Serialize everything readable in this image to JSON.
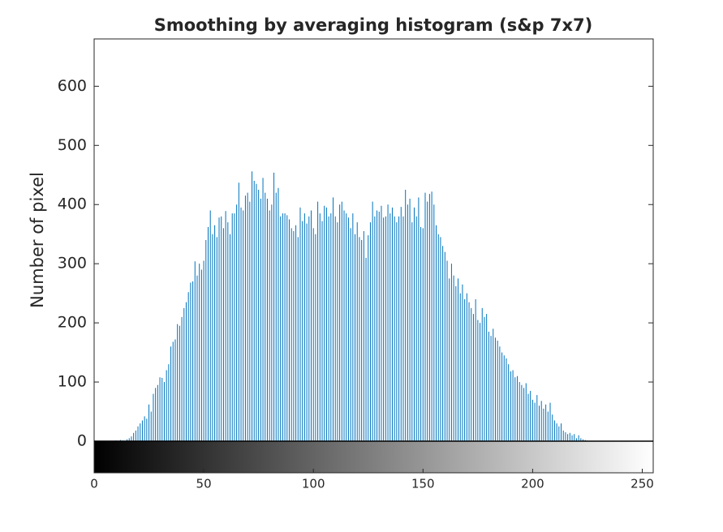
{
  "chart_data": {
    "type": "histogram",
    "title": "Smoothing by averaging histogram (s&p 7x7)",
    "ylabel": "Number of pixel",
    "color": "#0072bd",
    "xlim": [
      0,
      255
    ],
    "ylim": [
      0,
      680
    ],
    "xticks": [
      0,
      50,
      100,
      150,
      200,
      250
    ],
    "yticks": [
      0,
      100,
      200,
      300,
      400,
      500,
      600
    ],
    "x": [
      0,
      1,
      2,
      3,
      4,
      5,
      6,
      7,
      8,
      9,
      10,
      11,
      12,
      13,
      14,
      15,
      16,
      17,
      18,
      19,
      20,
      21,
      22,
      23,
      24,
      25,
      26,
      27,
      28,
      29,
      30,
      31,
      32,
      33,
      34,
      35,
      36,
      37,
      38,
      39,
      40,
      41,
      42,
      43,
      44,
      45,
      46,
      47,
      48,
      49,
      50,
      51,
      52,
      53,
      54,
      55,
      56,
      57,
      58,
      59,
      60,
      61,
      62,
      63,
      64,
      65,
      66,
      67,
      68,
      69,
      70,
      71,
      72,
      73,
      74,
      75,
      76,
      77,
      78,
      79,
      80,
      81,
      82,
      83,
      84,
      85,
      86,
      87,
      88,
      89,
      90,
      91,
      92,
      93,
      94,
      95,
      96,
      97,
      98,
      99,
      100,
      101,
      102,
      103,
      104,
      105,
      106,
      107,
      108,
      109,
      110,
      111,
      112,
      113,
      114,
      115,
      116,
      117,
      118,
      119,
      120,
      121,
      122,
      123,
      124,
      125,
      126,
      127,
      128,
      129,
      130,
      131,
      132,
      133,
      134,
      135,
      136,
      137,
      138,
      139,
      140,
      141,
      142,
      143,
      144,
      145,
      146,
      147,
      148,
      149,
      150,
      151,
      152,
      153,
      154,
      155,
      156,
      157,
      158,
      159,
      160,
      161,
      162,
      163,
      164,
      165,
      166,
      167,
      168,
      169,
      170,
      171,
      172,
      173,
      174,
      175,
      176,
      177,
      178,
      179,
      180,
      181,
      182,
      183,
      184,
      185,
      186,
      187,
      188,
      189,
      190,
      191,
      192,
      193,
      194,
      195,
      196,
      197,
      198,
      199,
      200,
      201,
      202,
      203,
      204,
      205,
      206,
      207,
      208,
      209,
      210,
      211,
      212,
      213,
      214,
      215,
      216,
      217,
      218,
      219,
      220,
      221,
      222,
      223,
      224,
      225,
      226,
      227,
      228,
      229,
      230,
      231,
      232,
      233,
      234,
      235,
      236,
      237,
      238,
      239,
      240,
      241,
      242,
      243,
      244,
      245,
      246,
      247,
      248,
      249,
      250,
      251,
      252,
      253,
      254,
      255
    ],
    "values": [
      0,
      0,
      0,
      0,
      0,
      0,
      0,
      0,
      0,
      0,
      1,
      0,
      2,
      1,
      0,
      3,
      5,
      8,
      14,
      18,
      25,
      30,
      35,
      42,
      38,
      62,
      50,
      80,
      90,
      95,
      108,
      107,
      100,
      120,
      130,
      160,
      168,
      172,
      198,
      195,
      210,
      225,
      235,
      252,
      268,
      270,
      304,
      280,
      300,
      290,
      305,
      340,
      362,
      390,
      350,
      365,
      345,
      378,
      380,
      360,
      389,
      370,
      350,
      385,
      385,
      400,
      437,
      395,
      390,
      415,
      420,
      405,
      456,
      440,
      435,
      425,
      410,
      445,
      420,
      410,
      390,
      400,
      454,
      420,
      428,
      380,
      385,
      385,
      382,
      375,
      360,
      355,
      365,
      345,
      395,
      372,
      385,
      368,
      380,
      390,
      360,
      350,
      405,
      385,
      372,
      398,
      395,
      380,
      385,
      412,
      380,
      370,
      400,
      405,
      390,
      385,
      378,
      360,
      385,
      350,
      370,
      345,
      340,
      355,
      310,
      348,
      370,
      405,
      380,
      390,
      388,
      398,
      378,
      380,
      400,
      385,
      395,
      380,
      370,
      380,
      396,
      380,
      425,
      400,
      410,
      370,
      395,
      380,
      412,
      362,
      360,
      420,
      405,
      418,
      422,
      400,
      365,
      350,
      345,
      330,
      320,
      305,
      275,
      300,
      280,
      262,
      275,
      250,
      265,
      240,
      250,
      235,
      225,
      215,
      240,
      205,
      200,
      225,
      210,
      215,
      185,
      178,
      190,
      175,
      170,
      160,
      150,
      145,
      140,
      130,
      118,
      120,
      108,
      110,
      100,
      95,
      90,
      98,
      80,
      85,
      70,
      65,
      78,
      60,
      68,
      55,
      62,
      50,
      65,
      45,
      35,
      30,
      25,
      30,
      18,
      15,
      12,
      14,
      10,
      12,
      5,
      10,
      5,
      3,
      2,
      1,
      0,
      0,
      0,
      0,
      0,
      0,
      0,
      0,
      0,
      0,
      0,
      0,
      0,
      0,
      0,
      0,
      0,
      0,
      0,
      0,
      0,
      0,
      0,
      0,
      0,
      0,
      0,
      0,
      0,
      0
    ]
  }
}
